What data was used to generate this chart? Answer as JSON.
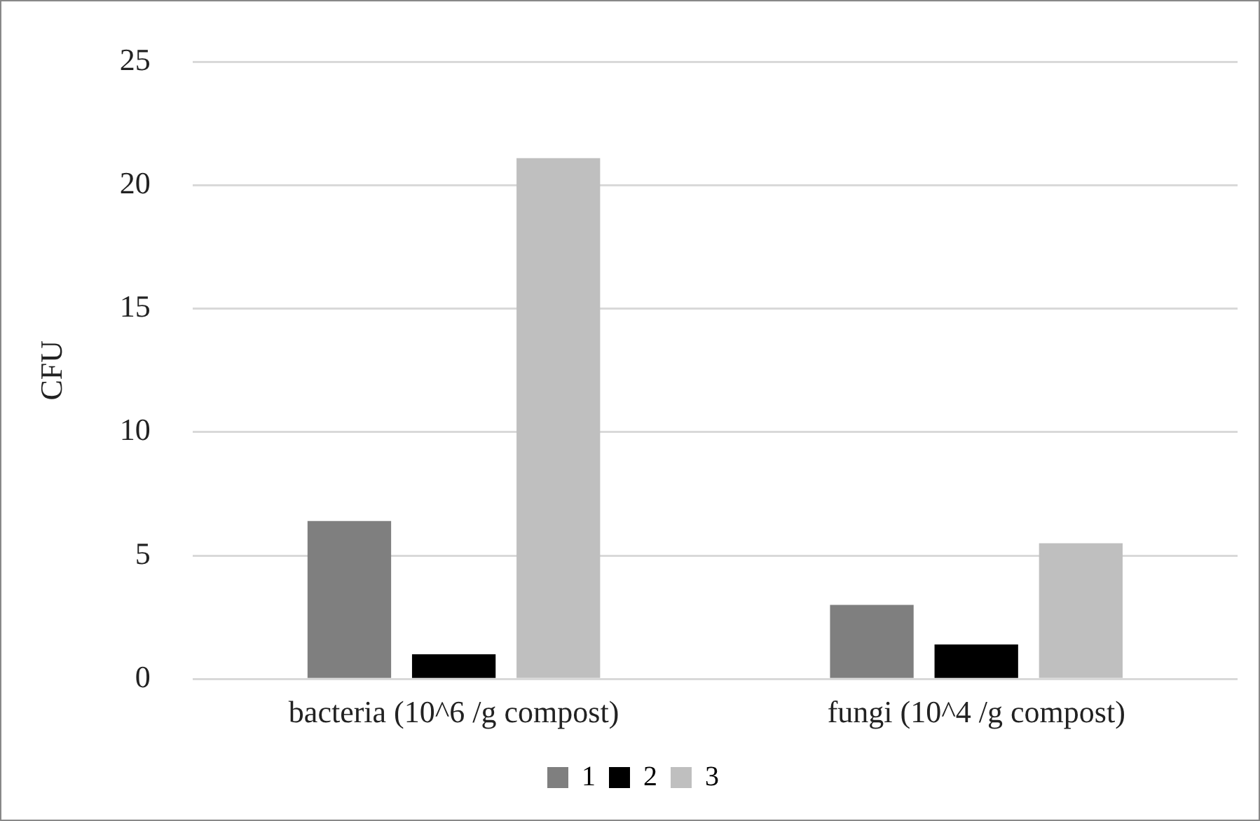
{
  "chart_data": {
    "type": "bar",
    "ylabel": "CFU",
    "categories": [
      "bacteria (10^6 /g compost)",
      "fungi (10^4 /g compost)"
    ],
    "series": [
      {
        "name": "1",
        "color": "#7f7f7f",
        "values": [
          6.4,
          3.0
        ]
      },
      {
        "name": "2",
        "color": "#000000",
        "values": [
          1.0,
          1.4
        ]
      },
      {
        "name": "3",
        "color": "#bfbfbf",
        "values": [
          21.1,
          5.5
        ]
      }
    ],
    "ylim": [
      0,
      25
    ],
    "yticks": [
      0,
      5,
      10,
      15,
      20,
      25
    ],
    "grid": "y",
    "legend": "bottom"
  }
}
